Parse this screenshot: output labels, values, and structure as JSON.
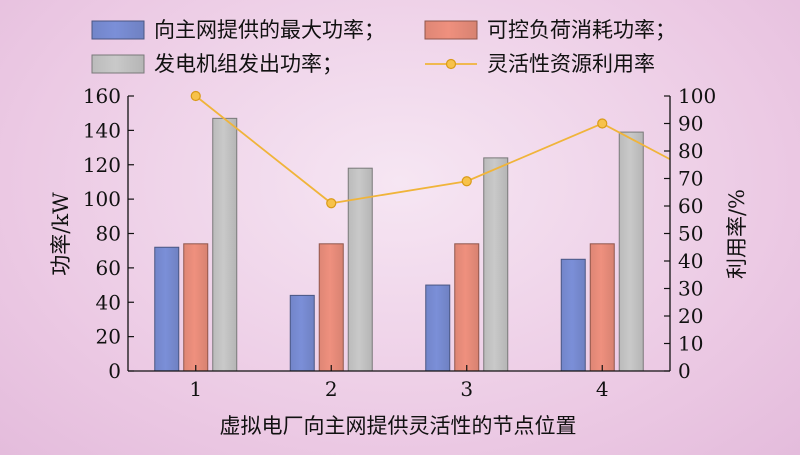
{
  "chart_data": {
    "type": "bar",
    "categories": [
      "1",
      "2",
      "3",
      "4"
    ],
    "series": [
      {
        "name": "向主网提供的最大功率；",
        "kind": "bar",
        "axis": "left",
        "values": [
          72,
          44,
          50,
          65
        ],
        "color": "#7b8fd8"
      },
      {
        "name": "可控负荷消耗功率；",
        "kind": "bar",
        "axis": "left",
        "values": [
          74,
          74,
          74,
          74
        ],
        "color": "#ef907e"
      },
      {
        "name": "发电机组发出功率；",
        "kind": "bar",
        "axis": "left",
        "values": [
          147,
          118,
          124,
          139
        ],
        "color": "#c9c9c9"
      },
      {
        "name": "灵活性资源利用率",
        "kind": "line",
        "axis": "right",
        "values": [
          100,
          61,
          69,
          90
        ],
        "trailing_value": 77,
        "color": "#f0b43a"
      }
    ],
    "xlabel": "虚拟电厂向主网提供灵活性的节点位置",
    "ylabel": "功率/kW",
    "y2label": "利用率/%",
    "ylim": [
      0,
      160
    ],
    "y2lim": [
      0,
      100
    ],
    "yticks": [
      0,
      20,
      40,
      60,
      80,
      100,
      120,
      140,
      160
    ],
    "y2ticks": [
      0,
      10,
      20,
      30,
      40,
      50,
      60,
      70,
      80,
      90,
      100
    ],
    "grid": false,
    "legend_position": "top"
  }
}
